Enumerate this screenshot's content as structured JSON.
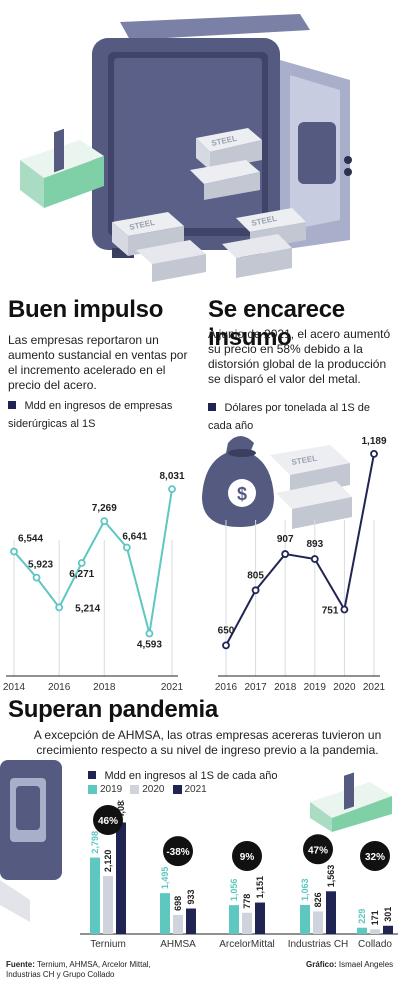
{
  "colors": {
    "teal": "#5dc7c0",
    "grey": "#cfd3dc",
    "navy": "#1f2452",
    "safe": "#545a80"
  },
  "illustration": {
    "bar_text": "STEEL"
  },
  "left": {
    "title": "Buen impulso",
    "desc": "Las empresas reportaron un aumento sustancial en ventas por el incremento acelerado en el precio del acero.",
    "legend": "Mdd en ingresos de empresas siderúrgicas al 1S"
  },
  "right": {
    "title": "Se encarece insumo",
    "desc": "A junio de 2021, el acero aumentó su precio en 58% debido a la distorsión global de la producción se disparó el valor del metal.",
    "legend": "Dólares por tonelada al 1S de cada año"
  },
  "bottom": {
    "title": "Superan pandemia",
    "desc": "A excepción de AHMSA, las otras empresas acereras tuvieron un crecimiento respecto a su nivel de ingreso previo a la pandemia.",
    "legend": "Mdd en ingresos al 1S de cada año"
  },
  "footer": {
    "source_label": "Fuente:",
    "source_text": "Ternium, AHMSA, Arcelor Mittal, Industrias CH y Grupo Collado",
    "credit_label": "Gráfico:",
    "credit_text": "Ismael Angeles"
  },
  "chart_data": [
    {
      "type": "line",
      "title": "Buen impulso",
      "ylabel": "Mdd en ingresos de empresas siderúrgicas al 1S",
      "x": [
        2014,
        2015,
        2016,
        2017,
        2018,
        2019,
        2020,
        2021
      ],
      "values": [
        6544,
        5923,
        5214,
        6271,
        7269,
        6641,
        4593,
        8031
      ],
      "labels": [
        "6,544",
        "5,923",
        "5,214",
        "6,271",
        "7,269",
        "6,641",
        "4,593",
        "8,031"
      ],
      "x_ticks": [
        "2014",
        "2016",
        "2018",
        "2021"
      ],
      "color": "#5dc7c0"
    },
    {
      "type": "line",
      "title": "Se encarece insumo",
      "ylabel": "Dólares por tonelada al 1S de cada año",
      "x": [
        2016,
        2017,
        2018,
        2019,
        2020,
        2021
      ],
      "values": [
        650,
        805,
        907,
        893,
        751,
        1189
      ],
      "labels": [
        "650",
        "805",
        "907",
        "893",
        "751",
        "1,189"
      ],
      "x_ticks": [
        "2016",
        "2017",
        "2018",
        "2019",
        "2020",
        "2021"
      ],
      "color": "#1f2452"
    },
    {
      "type": "bar",
      "title": "Superan pandemia",
      "ylabel": "Mdd en ingresos al 1S de cada año",
      "categories": [
        "Ternium",
        "AHMSA",
        "ArcelorMittal",
        "Industrias CH",
        "Collado"
      ],
      "series": [
        {
          "name": "2019",
          "values": [
            2798,
            1495,
            1056,
            1063,
            229
          ],
          "labels": [
            "2,798",
            "1,495",
            "1,056",
            "1,063",
            "229"
          ],
          "color": "#5dc7c0"
        },
        {
          "name": "2020",
          "values": [
            2120,
            698,
            778,
            826,
            171
          ],
          "labels": [
            "2,120",
            "698",
            "778",
            "826",
            "171"
          ],
          "color": "#cfd3dc"
        },
        {
          "name": "2021",
          "values": [
            4083,
            933,
            1151,
            1563,
            301
          ],
          "labels": [
            "4,083",
            "933",
            "1,151",
            "1,563",
            "301"
          ],
          "color": "#1f2452"
        }
      ],
      "badges": [
        "46%",
        "-38%",
        "9%",
        "47%",
        "32%"
      ]
    }
  ]
}
